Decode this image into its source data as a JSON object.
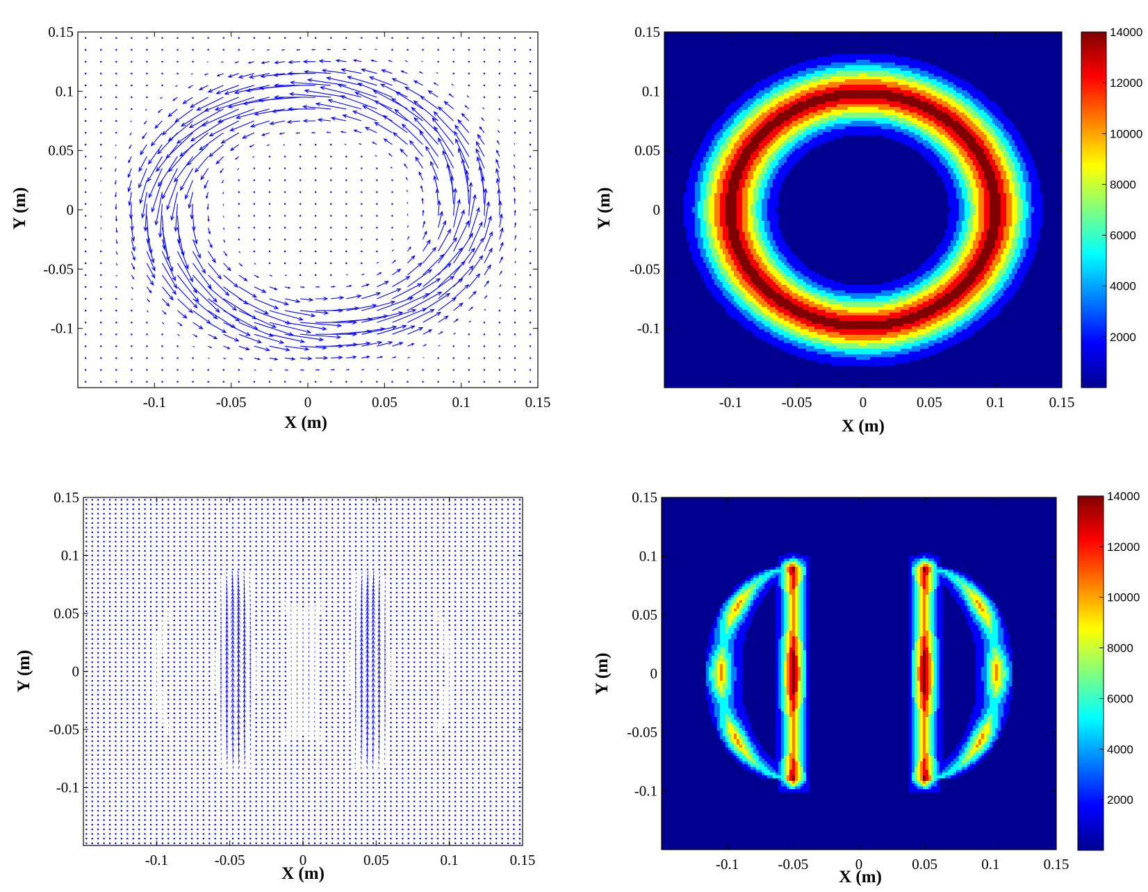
{
  "colors": {
    "arrow": "#0000ff",
    "background": "#00008f",
    "axis": "#000000",
    "colormap": [
      "#00008f",
      "#0000ff",
      "#0080ff",
      "#00ffff",
      "#80ff80",
      "#ffff00",
      "#ff8000",
      "#ff0000",
      "#800000"
    ]
  },
  "chart_data": [
    {
      "type": "quiver",
      "panel": "top-left",
      "xlabel": "X (m)",
      "ylabel": "Y (m)",
      "xlim": [
        -0.15,
        0.15
      ],
      "ylim": [
        -0.15,
        0.15
      ],
      "xticks": [
        -0.1,
        -0.05,
        0,
        0.05,
        0.1,
        0.15
      ],
      "yticks": [
        0.15,
        0.1,
        0.05,
        0,
        -0.05,
        -0.1
      ],
      "xtick_labels": [
        "-0.1",
        "-0.05",
        "0",
        "0.05",
        "0.1",
        "0.15"
      ],
      "ytick_labels": [
        "0.15",
        "0.1",
        "0.05",
        "0",
        "-0.05",
        "-0.1"
      ],
      "field": {
        "kind": "single-vortex",
        "center": [
          0.005,
          0
        ],
        "radius": [
          0.1,
          0.1
        ],
        "rotation": "counter-clockwise",
        "grid_spacing": 0.01
      }
    },
    {
      "type": "heatmap",
      "panel": "top-right",
      "xlabel": "X (m)",
      "ylabel": "Y (m)",
      "xlim": [
        -0.15,
        0.15
      ],
      "ylim": [
        -0.15,
        0.15
      ],
      "xticks": [
        -0.1,
        -0.05,
        0,
        0.05,
        0.1,
        0.15
      ],
      "yticks": [
        0.15,
        0.1,
        0.05,
        0,
        -0.05,
        -0.1
      ],
      "xtick_labels": [
        "-0.1",
        "-0.05",
        "0",
        "0.05",
        "0.1",
        "0.15"
      ],
      "ytick_labels": [
        "0.15",
        "0.1",
        "0.05",
        "0",
        "-0.05",
        "-0.1"
      ],
      "colorbar": {
        "min": 0,
        "max": 14000,
        "ticks": [
          14000,
          12000,
          10000,
          8000,
          6000,
          4000,
          2000
        ],
        "tick_labels": [
          "14000",
          "12000",
          "10000",
          "8000",
          "6000",
          "4000",
          "2000"
        ]
      },
      "structure": {
        "kind": "ring",
        "center": [
          0,
          0
        ],
        "radius": 0.1,
        "half_width": 0.036,
        "peak": 14000
      }
    },
    {
      "type": "quiver",
      "panel": "bottom-left",
      "xlabel": "X (m)",
      "ylabel": "Y (m)",
      "xlim": [
        -0.15,
        0.15
      ],
      "ylim": [
        -0.15,
        0.15
      ],
      "xticks": [
        -0.1,
        -0.05,
        0,
        0.05,
        0.1,
        0.15
      ],
      "yticks": [
        0.15,
        0.1,
        0.05,
        0,
        -0.05,
        -0.1
      ],
      "xtick_labels": [
        "-0.1",
        "-0.05",
        "0",
        "0.05",
        "0.1",
        "0.15"
      ],
      "ytick_labels": [
        "0.15",
        "0.1",
        "0.05",
        "0",
        "-0.05",
        "-0.1"
      ],
      "field": {
        "kind": "vortex-pair",
        "centers": [
          [
            -0.05,
            0
          ],
          [
            0.05,
            0
          ]
        ],
        "half_extent": [
          0.05,
          0.09
        ],
        "grid_spacing": 0.004
      }
    },
    {
      "type": "heatmap",
      "panel": "bottom-right",
      "xlabel": "X (m)",
      "ylabel": "Y (m)",
      "xlim": [
        -0.15,
        0.15
      ],
      "ylim": [
        -0.15,
        0.15
      ],
      "xticks": [
        -0.1,
        -0.05,
        0,
        0.05,
        0.1,
        0.15
      ],
      "yticks": [
        0.15,
        0.1,
        0.05,
        0,
        -0.05,
        -0.1
      ],
      "xtick_labels": [
        "-0.1",
        "-0.05",
        "0",
        "0.05",
        "0.1",
        "0.15"
      ],
      "ytick_labels": [
        "0.15",
        "0.1",
        "0.05",
        "0",
        "-0.05",
        "-0.1"
      ],
      "colorbar": {
        "min": 0,
        "max": 14000,
        "ticks": [
          14000,
          12000,
          10000,
          8000,
          6000,
          4000,
          2000
        ],
        "tick_labels": [
          "14000",
          "12000",
          "10000",
          "8000",
          "6000",
          "4000",
          "2000"
        ]
      },
      "structure": {
        "kind": "two-half-discs",
        "flat_edge_x": [
          -0.05,
          0.05
        ],
        "half_height": 0.09,
        "bulge": 0.055,
        "peak": 14000
      }
    }
  ]
}
